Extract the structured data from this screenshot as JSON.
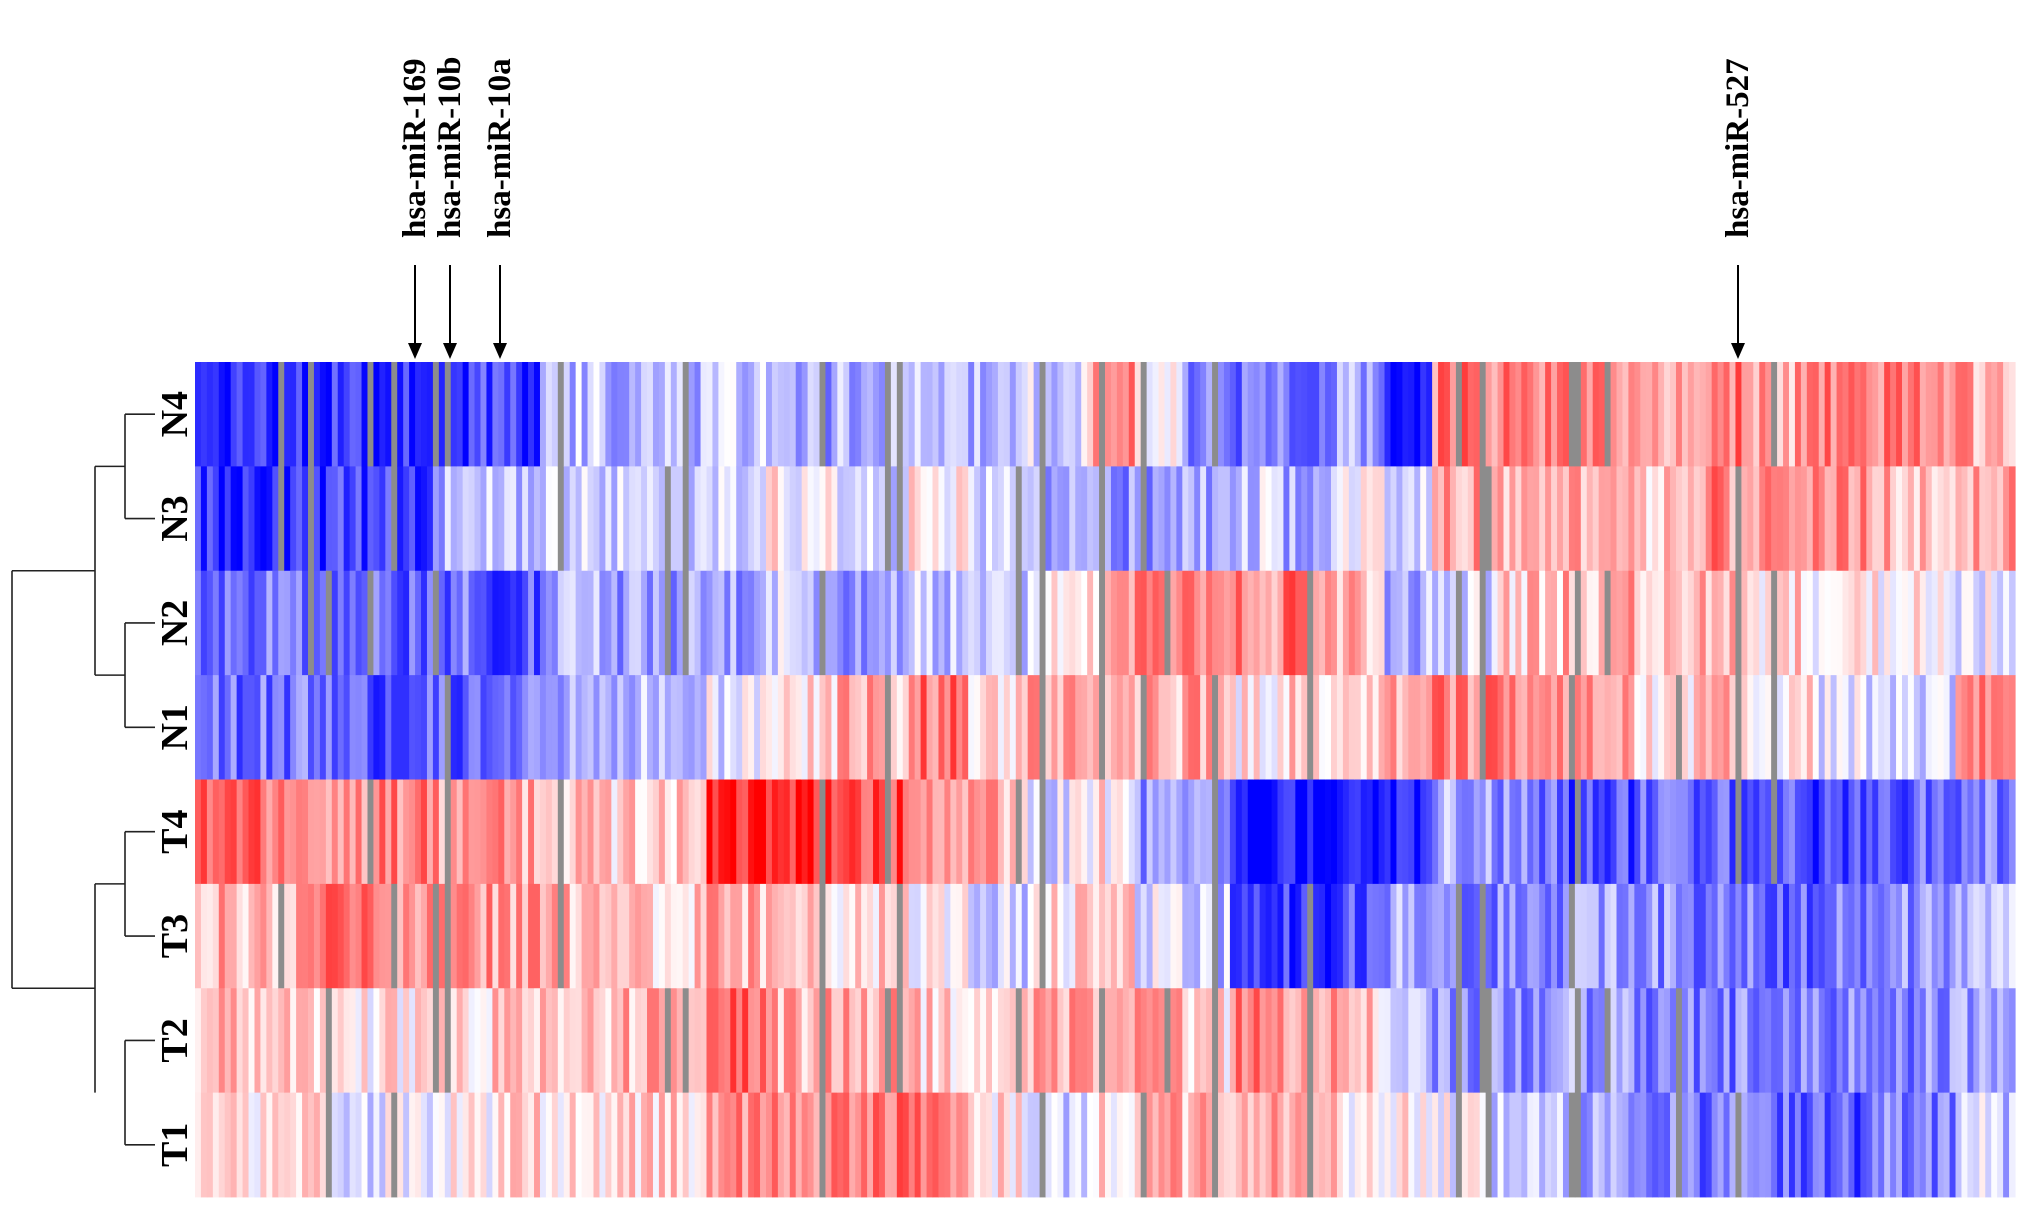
{
  "chart_data": {
    "type": "heatmap",
    "title": "",
    "xlabel": "",
    "ylabel": "",
    "rows": [
      "N4",
      "N3",
      "N2",
      "N1",
      "T4",
      "T3",
      "T2",
      "T1"
    ],
    "annotated_columns": [
      "hsa-miR-169",
      "hsa-miR-10b",
      "hsa-miR-10a",
      "hsa-miR-527"
    ],
    "color_scale": {
      "low": "#0000ff",
      "mid": "#ffffff",
      "high": "#ff0000",
      "missing": "#8c8c8c"
    },
    "dendrogram": {
      "clusters": [
        [
          "N4",
          "N3"
        ],
        [
          "N2",
          "N1"
        ],
        [
          "T4",
          "T3"
        ],
        [
          "T2",
          "T1"
        ]
      ],
      "groups": [
        [
          "N4",
          "N3",
          "N2",
          "N1"
        ],
        [
          "T4",
          "T3",
          "T2",
          "T1"
        ]
      ]
    },
    "segments": [
      {
        "cols": 22,
        "values": [
          -0.85,
          -0.8,
          -0.55,
          -0.55,
          0.55,
          0.3,
          0.2,
          0.15
        ]
      },
      {
        "cols": 18,
        "values": [
          -0.8,
          -0.7,
          -0.6,
          -0.65,
          0.45,
          0.5,
          0.1,
          -0.1
        ]
      },
      {
        "cols": 10,
        "values": [
          -0.75,
          -0.3,
          -0.55,
          -0.6,
          0.4,
          0.45,
          0.15,
          0.1
        ]
      },
      {
        "cols": 8,
        "values": [
          -0.75,
          -0.25,
          -0.65,
          -0.5,
          0.35,
          0.35,
          0.2,
          0.15
        ]
      },
      {
        "cols": 14,
        "values": [
          -0.25,
          -0.15,
          -0.35,
          -0.25,
          0.2,
          0.25,
          0.25,
          0.1
        ]
      },
      {
        "cols": 14,
        "values": [
          -0.25,
          -0.15,
          -0.35,
          -0.2,
          0.15,
          0.2,
          0.3,
          0.15
        ]
      },
      {
        "cols": 10,
        "values": [
          -0.2,
          -0.1,
          -0.4,
          -0.1,
          0.8,
          0.3,
          0.6,
          0.5
        ]
      },
      {
        "cols": 12,
        "values": [
          -0.35,
          0.05,
          -0.2,
          0.1,
          0.75,
          0.2,
          0.3,
          0.45
        ]
      },
      {
        "cols": 12,
        "values": [
          -0.3,
          -0.1,
          -0.35,
          0.3,
          0.7,
          0.15,
          0.3,
          0.5
        ]
      },
      {
        "cols": 10,
        "values": [
          -0.2,
          0.05,
          -0.25,
          0.55,
          0.45,
          -0.05,
          0.2,
          0.45
        ]
      },
      {
        "cols": 10,
        "values": [
          -0.25,
          -0.15,
          -0.2,
          0.2,
          0.3,
          -0.2,
          0.15,
          0.1
        ]
      },
      {
        "cols": 10,
        "values": [
          -0.15,
          -0.35,
          0.1,
          0.3,
          -0.1,
          0.1,
          0.3,
          -0.2
        ]
      },
      {
        "cols": 8,
        "values": [
          0.4,
          -0.4,
          0.2,
          0.25,
          0.1,
          0.2,
          0.3,
          0.1
        ]
      },
      {
        "cols": 8,
        "values": [
          0.1,
          -0.45,
          0.4,
          0.3,
          -0.4,
          -0.15,
          0.4,
          0.4
        ]
      },
      {
        "cols": 8,
        "values": [
          -0.45,
          -0.35,
          0.45,
          0.35,
          -0.5,
          -0.25,
          0.1,
          0.3
        ]
      },
      {
        "cols": 8,
        "values": [
          -0.6,
          -0.2,
          0.45,
          0.1,
          -0.95,
          -0.7,
          0.5,
          0.4
        ]
      },
      {
        "cols": 10,
        "values": [
          -0.5,
          -0.35,
          0.55,
          0.2,
          -0.95,
          -0.75,
          0.35,
          0.3
        ]
      },
      {
        "cols": 8,
        "values": [
          -0.35,
          0.1,
          0.3,
          0.2,
          -0.95,
          -0.6,
          0.2,
          0.1
        ]
      },
      {
        "cols": 8,
        "values": [
          -0.9,
          -0.25,
          -0.3,
          0.3,
          -0.95,
          -0.35,
          -0.3,
          0.05
        ]
      },
      {
        "cols": 10,
        "values": [
          0.5,
          0.35,
          -0.2,
          0.45,
          -0.35,
          -0.5,
          -0.4,
          0.0
        ]
      },
      {
        "cols": 12,
        "values": [
          0.45,
          0.3,
          0.2,
          0.5,
          -0.5,
          -0.5,
          -0.45,
          -0.15
        ]
      },
      {
        "cols": 12,
        "values": [
          0.5,
          0.35,
          0.3,
          0.35,
          -0.7,
          -0.35,
          -0.4,
          -0.3
        ]
      },
      {
        "cols": 10,
        "values": [
          0.35,
          0.25,
          0.2,
          0.15,
          -0.6,
          -0.45,
          -0.45,
          -0.4
        ]
      },
      {
        "cols": 10,
        "values": [
          0.55,
          0.45,
          0.25,
          0.3,
          -0.65,
          -0.55,
          -0.5,
          -0.55
        ]
      },
      {
        "cols": 10,
        "values": [
          0.35,
          0.35,
          0.15,
          0.1,
          -0.7,
          -0.6,
          -0.55,
          -0.6
        ]
      },
      {
        "cols": 10,
        "values": [
          0.45,
          0.4,
          0.1,
          -0.1,
          -0.75,
          -0.5,
          -0.5,
          -0.65
        ]
      },
      {
        "cols": 14,
        "values": [
          0.45,
          0.3,
          0.1,
          -0.15,
          -0.6,
          -0.45,
          -0.45,
          -0.5
        ]
      },
      {
        "cols": 10,
        "values": [
          0.35,
          0.35,
          -0.05,
          0.45,
          -0.5,
          -0.3,
          -0.35,
          -0.2
        ]
      }
    ]
  }
}
